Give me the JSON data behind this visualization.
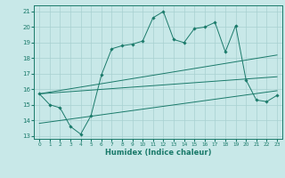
{
  "xlabel": "Humidex (Indice chaleur)",
  "bg_color": "#c8e8e8",
  "line_color": "#1a7a6a",
  "grid_color": "#a8d0d0",
  "xlim": [
    -0.5,
    23.5
  ],
  "ylim": [
    12.8,
    21.4
  ],
  "xticks": [
    0,
    1,
    2,
    3,
    4,
    5,
    6,
    7,
    8,
    9,
    10,
    11,
    12,
    13,
    14,
    15,
    16,
    17,
    18,
    19,
    20,
    21,
    22,
    23
  ],
  "yticks": [
    13,
    14,
    15,
    16,
    17,
    18,
    19,
    20,
    21
  ],
  "series1_x": [
    0,
    1,
    2,
    3,
    4,
    5,
    6,
    7,
    8,
    9,
    10,
    11,
    12,
    13,
    14,
    15,
    16,
    17,
    18,
    19,
    20,
    21,
    22,
    23
  ],
  "series1_y": [
    15.7,
    15.0,
    14.8,
    13.6,
    13.1,
    14.3,
    16.9,
    18.6,
    18.8,
    18.9,
    19.1,
    20.6,
    21.0,
    19.2,
    19.0,
    19.9,
    20.0,
    20.3,
    18.4,
    20.1,
    16.6,
    15.3,
    15.2,
    15.6
  ],
  "series2_x": [
    0,
    23
  ],
  "series2_y": [
    15.7,
    18.2
  ],
  "series3_x": [
    0,
    23
  ],
  "series3_y": [
    15.7,
    16.8
  ],
  "series4_x": [
    0,
    23
  ],
  "series4_y": [
    13.8,
    15.9
  ]
}
